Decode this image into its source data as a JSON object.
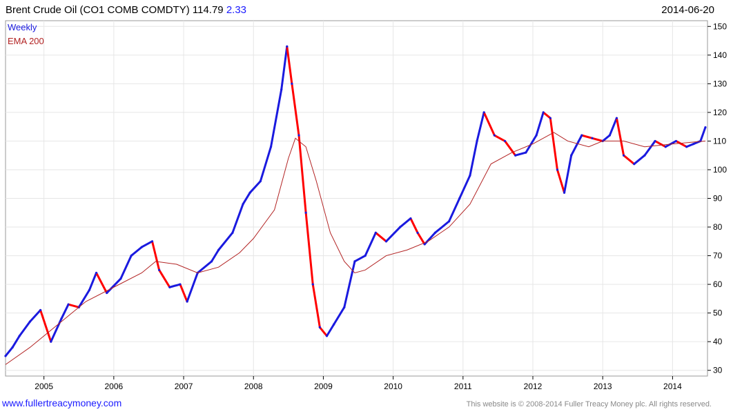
{
  "header": {
    "title": "Brent Crude Oil  (CO1 COMB COMDTY) 114.79",
    "change": "2.33",
    "date": "2014-06-20"
  },
  "legend": {
    "weekly": "Weekly",
    "ema": "EMA 200"
  },
  "footer": {
    "site": "www.fullertreacymoney.com",
    "copyright": "This website is © 2008-2014 Fuller Treacy Money plc. All rights reserved."
  },
  "colors": {
    "up": "#1a1adf",
    "down": "#ff0000",
    "ema": "#b22222",
    "grid": "#e6e6e6",
    "axis": "#000000"
  },
  "chart_data": {
    "type": "line",
    "title": "Brent Crude Oil  (CO1 COMB COMDTY) 114.79",
    "xlabel": "",
    "ylabel": "",
    "xlim": [
      2004.45,
      2014.5
    ],
    "ylim": [
      28,
      152
    ],
    "yticks": [
      30,
      40,
      50,
      60,
      70,
      80,
      90,
      100,
      110,
      120,
      130,
      140,
      150
    ],
    "xticks": [
      2005,
      2006,
      2007,
      2008,
      2009,
      2010,
      2011,
      2012,
      2013,
      2014
    ],
    "grid": true,
    "legend_position": "top-left",
    "series": [
      {
        "name": "Weekly",
        "x": [
          2004.45,
          2004.55,
          2004.65,
          2004.8,
          2004.95,
          2005.1,
          2005.25,
          2005.35,
          2005.5,
          2005.65,
          2005.75,
          2005.9,
          2006.1,
          2006.25,
          2006.4,
          2006.55,
          2006.65,
          2006.8,
          2006.95,
          2007.05,
          2007.2,
          2007.4,
          2007.5,
          2007.7,
          2007.85,
          2007.95,
          2008.1,
          2008.25,
          2008.4,
          2008.48,
          2008.55,
          2008.65,
          2008.75,
          2008.85,
          2008.95,
          2009.05,
          2009.15,
          2009.3,
          2009.45,
          2009.6,
          2009.75,
          2009.9,
          2010.1,
          2010.25,
          2010.35,
          2010.45,
          2010.6,
          2010.8,
          2010.95,
          2011.1,
          2011.2,
          2011.3,
          2011.45,
          2011.6,
          2011.75,
          2011.9,
          2012.05,
          2012.15,
          2012.25,
          2012.35,
          2012.45,
          2012.55,
          2012.7,
          2012.85,
          2013.0,
          2013.1,
          2013.2,
          2013.3,
          2013.45,
          2013.6,
          2013.75,
          2013.9,
          2014.05,
          2014.2,
          2014.3,
          2014.4,
          2014.47
        ],
        "values": [
          35,
          38,
          42,
          47,
          51,
          40,
          48,
          53,
          52,
          58,
          64,
          57,
          62,
          70,
          73,
          75,
          65,
          59,
          60,
          54,
          64,
          68,
          72,
          78,
          88,
          92,
          96,
          108,
          128,
          143,
          130,
          112,
          85,
          60,
          45,
          42,
          46,
          52,
          68,
          70,
          78,
          75,
          80,
          83,
          78,
          74,
          78,
          82,
          90,
          98,
          110,
          120,
          112,
          110,
          105,
          106,
          112,
          120,
          118,
          100,
          92,
          105,
          112,
          111,
          110,
          112,
          118,
          105,
          102,
          105,
          110,
          108,
          110,
          108,
          109,
          110,
          114.79
        ]
      },
      {
        "name": "EMA 200",
        "x": [
          2004.45,
          2004.8,
          2005.2,
          2005.6,
          2006.0,
          2006.4,
          2006.6,
          2006.9,
          2007.2,
          2007.5,
          2007.8,
          2008.0,
          2008.3,
          2008.5,
          2008.6,
          2008.75,
          2008.9,
          2009.1,
          2009.3,
          2009.45,
          2009.6,
          2009.9,
          2010.2,
          2010.5,
          2010.8,
          2011.1,
          2011.4,
          2011.7,
          2012.0,
          2012.3,
          2012.5,
          2012.8,
          2013.0,
          2013.3,
          2013.6,
          2014.0,
          2014.47
        ],
        "values": [
          32,
          38,
          46,
          54,
          59,
          64,
          68,
          67,
          64,
          66,
          71,
          76,
          86,
          104,
          111,
          108,
          96,
          78,
          68,
          64,
          65,
          70,
          72,
          75,
          80,
          88,
          102,
          106,
          109,
          113,
          110,
          108,
          110,
          110,
          108,
          109,
          110
        ]
      }
    ]
  }
}
